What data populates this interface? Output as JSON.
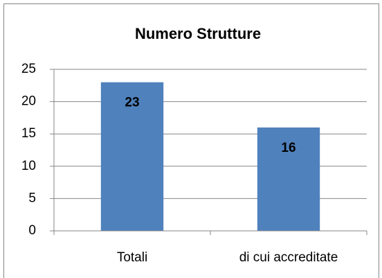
{
  "chart_data": {
    "type": "bar",
    "title": "Numero Strutture",
    "categories": [
      "Totali",
      "di cui accreditate"
    ],
    "values": [
      23,
      16
    ],
    "color": "#4f81bd",
    "ylim": [
      0,
      25
    ],
    "yticks": [
      0,
      5,
      10,
      15,
      20,
      25
    ],
    "grid": true
  }
}
